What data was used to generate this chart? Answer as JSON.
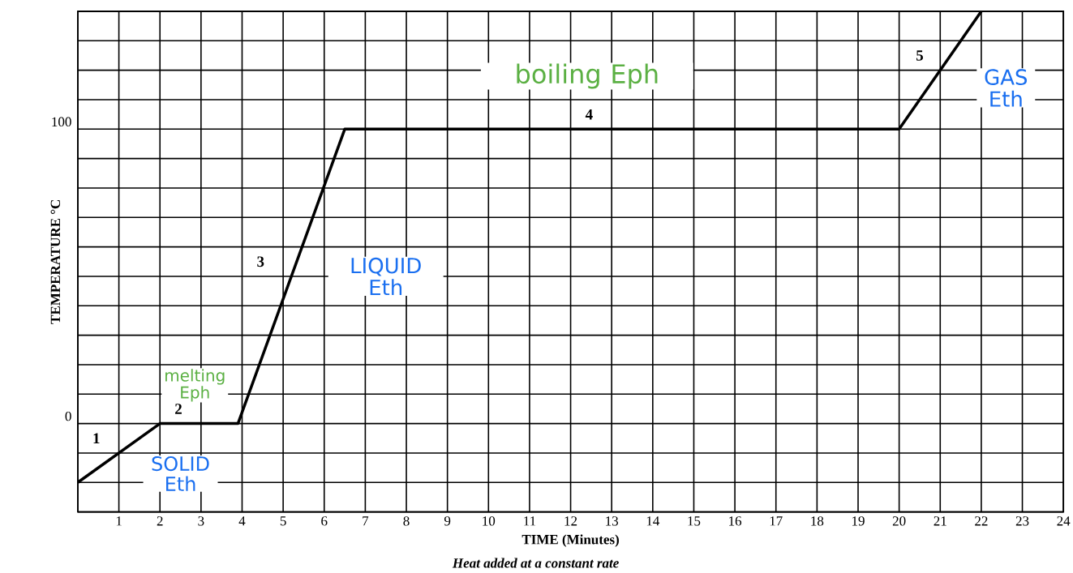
{
  "chart_data": {
    "type": "line",
    "xlabel": "TIME (Minutes)",
    "ylabel": "TEMPERATURE °C",
    "x": [
      0,
      2,
      3.9,
      6.5,
      20,
      22
    ],
    "series": [
      {
        "color": "#000000",
        "values": [
          -20,
          0,
          0,
          100,
          100,
          140
        ]
      }
    ],
    "xlim": [
      0,
      24
    ],
    "ylim": [
      -30,
      140
    ],
    "xticks": [
      {
        "value": 0,
        "label": null
      },
      1,
      2,
      3,
      4,
      5,
      6,
      7,
      8,
      9,
      10,
      11,
      12,
      13,
      14,
      15,
      16,
      17,
      18,
      19,
      20,
      21,
      22,
      23,
      24
    ],
    "yticks": [
      {
        "value": -30,
        "label": null
      },
      {
        "value": -20,
        "label": null
      },
      {
        "value": -10,
        "label": null
      },
      0,
      {
        "value": 10,
        "label": null
      },
      {
        "value": 20,
        "label": null
      },
      {
        "value": 30,
        "label": null
      },
      {
        "value": 40,
        "label": null
      },
      {
        "value": 50,
        "label": null
      },
      {
        "value": 60,
        "label": null
      },
      {
        "value": 70,
        "label": null
      },
      {
        "value": 80,
        "label": null
      },
      {
        "value": 90,
        "label": null
      },
      100,
      {
        "value": 110,
        "label": null
      },
      {
        "value": 120,
        "label": null
      },
      {
        "value": 130,
        "label": null
      },
      {
        "value": 140,
        "label": null
      }
    ],
    "grid": true,
    "marker": "none",
    "line_style": "solid",
    "annotations": [
      "1",
      "2",
      "3",
      "4",
      "5",
      "SOLID Eth",
      "melting Eph",
      "LIQUID Eth",
      "boiling Eph",
      "GAS Eth",
      "Heat added at a constant rate"
    ]
  }
}
